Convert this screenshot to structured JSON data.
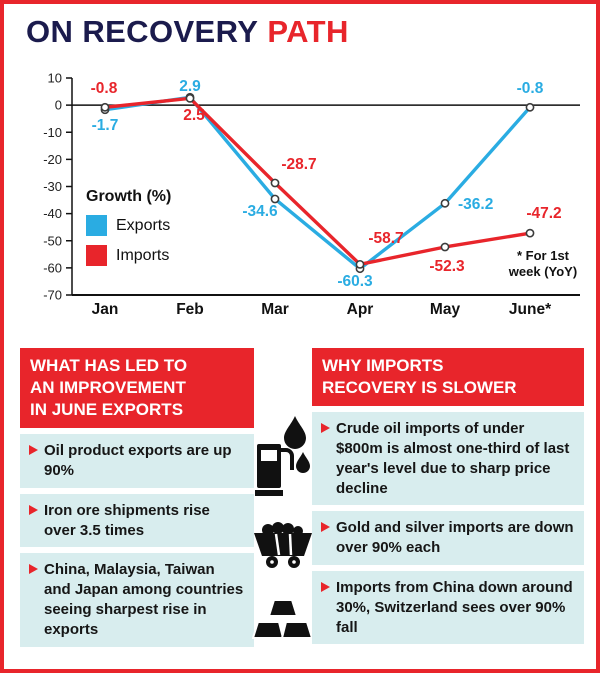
{
  "title": {
    "part1": "ON RECOVERY",
    "part2": "PATH"
  },
  "colors": {
    "red": "#e8252b",
    "blue": "#2aace2",
    "navy": "#1b1b4d",
    "panel_bg": "#d8edee",
    "ink": "#111111"
  },
  "chart_data": {
    "type": "line",
    "title": "ON RECOVERY PATH",
    "legend_title": "Growth (%)",
    "note": "* For 1st\nweek (YoY)",
    "categories": [
      "Jan",
      "Feb",
      "Mar",
      "Apr",
      "May",
      "June*"
    ],
    "series": [
      {
        "name": "Exports",
        "color": "#2aace2",
        "values": [
          -1.7,
          2.9,
          -34.6,
          -60.3,
          -36.2,
          -0.8
        ]
      },
      {
        "name": "Imports",
        "color": "#e8252b",
        "values": [
          -0.8,
          2.5,
          -28.7,
          -58.7,
          -52.3,
          -47.2
        ]
      }
    ],
    "ylim": [
      -70,
      10
    ],
    "yticks": [
      10,
      0,
      -10,
      -20,
      -30,
      -40,
      -50,
      -60,
      -70
    ],
    "grid": "zero-line and bottom baseline only",
    "legend_position": "middle-left"
  },
  "panels": {
    "left": {
      "header": "WHAT HAS LED TO\nAN IMPROVEMENT\nIN JUNE EXPORTS",
      "items": [
        "Oil product exports are up 90%",
        "Iron ore shipments rise over 3.5 times",
        "China, Malaysia, Taiwan and Japan among countries seeing sharpest rise in exports"
      ]
    },
    "right": {
      "header": "WHY IMPORTS\nRECOVERY IS SLOWER",
      "items": [
        "Crude oil imports of under $800m is almost one-third of last year's level due to sharp price decline",
        "Gold and silver imports are down over 90% each",
        "Imports from China down around 30%, Switzerland sees over 90% fall"
      ]
    },
    "icons": [
      "fuel-pump-with-drops",
      "mine-cart",
      "gold-bars"
    ]
  }
}
